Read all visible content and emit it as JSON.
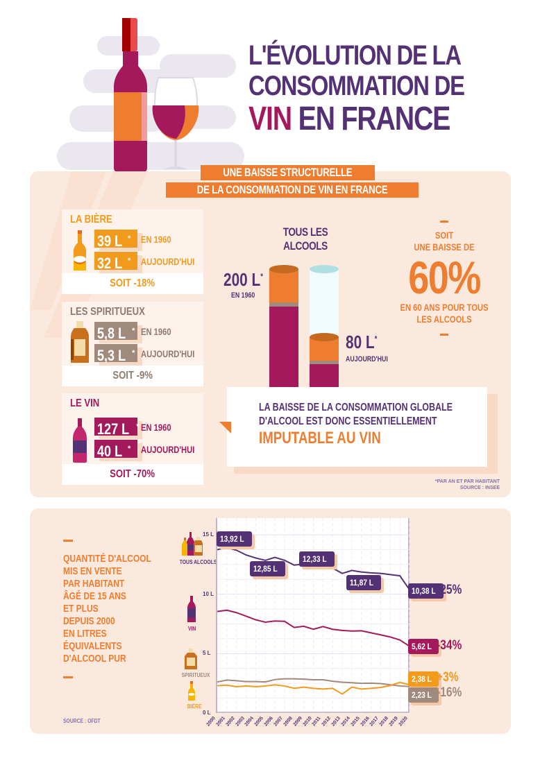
{
  "colors": {
    "purple": "#543174",
    "wine": "#a3195b",
    "orange": "#ee7d30",
    "beer": "#f29a1b",
    "spirits": "#a08a7c",
    "panel": "#fce9de"
  },
  "header": {
    "title_line1": "L'ÉVOLUTION DE LA",
    "title_line2": "CONSOMMATION DE",
    "title_line3_highlight": "VIN",
    "title_line3_rest": " EN FRANCE"
  },
  "section1": {
    "subtitle_line1": "UNE BAISSE STRUCTURELLE",
    "subtitle_line2": "DE LA CONSOMMATION DE VIN EN FRANCE",
    "cards": [
      {
        "title": "LA BIÈRE",
        "value_1960": "39 L",
        "label_1960": "EN 1960",
        "value_today": "32 L",
        "label_today": "AUJOURD'HUI",
        "asterisk": "*",
        "change": "SOIT -18%",
        "icon": "beer-bottle-icon"
      },
      {
        "title": "LES SPIRITUEUX",
        "value_1960": "5,8 L",
        "label_1960": "EN 1960",
        "value_today": "5,3 L",
        "label_today": "AUJOURD'HUI",
        "asterisk": "*",
        "change": "SOIT -9%",
        "icon": "spirits-bottle-icon"
      },
      {
        "title": "LE VIN",
        "value_1960": "127 L",
        "label_1960": "EN 1960",
        "value_today": "40 L",
        "label_today": "AUJOURD'HUI",
        "asterisk": "*",
        "change": "SOIT -70%",
        "icon": "wine-bottle-icon"
      }
    ],
    "all_alcohol": {
      "heading_line1": "TOUS LES",
      "heading_line2": "ALCOOLS",
      "value_1960": "200 L",
      "label_1960": "EN 1960",
      "value_today": "80 L",
      "label_today": "AUJOURD'HUI",
      "asterisk": "*"
    },
    "drop": {
      "line1": "SOIT",
      "line2": "UNE BAISSE DE",
      "percent": "60%",
      "line3": "EN 60 ANS POUR TOUS",
      "line4": "LES ALCOOLS"
    },
    "conclusion": {
      "line1": "LA BAISSE DE LA CONSOMMATION GLOBALE",
      "line2": "D'ALCOOL EST DONC ESSENTIELLEMENT",
      "highlight": "IMPUTABLE AU VIN"
    },
    "footnote_line1": "*PAR AN ET PAR HABITANT",
    "footnote_line2": "SOURCE : INSEE"
  },
  "section2": {
    "description": [
      "QUANTITÉ D'ALCOOL",
      "MIS EN VENTE",
      "PAR HABITANT",
      "ÂGÉ DE 15 ANS",
      "ET PLUS",
      "DEPUIS 2000",
      "EN LITRES",
      "ÉQUIVALENTS",
      "D'ALCOOL PUR"
    ],
    "source": "SOURCE : OFDT",
    "category_labels": {
      "all": "TOUS ALCOOLS",
      "wine": "VIN",
      "spirits": "SPIRITUEUX",
      "beer": "BIÈRE"
    },
    "callouts": {
      "all_2001": "13,92 L",
      "all_2005": "12,85 L",
      "all_2010": "12,33 L",
      "all_2015": "11,87 L",
      "all_2020": "10,38 L",
      "wine_2020": "5,62 L",
      "beer_2020": "2,38 L",
      "spirits_2020": "2,23 L"
    },
    "changes": {
      "all": "-25%",
      "wine": "-34%",
      "beer": "+3%",
      "spirits": "-16%"
    }
  },
  "chart_data": {
    "type": "line",
    "title": "Quantité d'alcool mis en vente par habitant âgé de 15 ans et plus depuis 2000 en litres équivalents d'alcool pur",
    "xlabel": "",
    "ylabel": "Litres d'alcool pur",
    "ylim": [
      0,
      15
    ],
    "yticks": [
      "0 L",
      "5 L",
      "10 L",
      "15 L"
    ],
    "grid": true,
    "x": [
      "2000",
      "2001",
      "2002",
      "2003",
      "2004",
      "2005",
      "2006",
      "2007",
      "2008",
      "2009",
      "2010",
      "2011",
      "2012",
      "2013",
      "2014",
      "2015",
      "2016",
      "2017",
      "2018",
      "2019",
      "2020"
    ],
    "series": [
      {
        "name": "Tous alcools",
        "color": "#543174",
        "values": [
          13.75,
          13.92,
          13.7,
          13.3,
          13.05,
          12.85,
          13.1,
          12.85,
          12.45,
          12.55,
          12.33,
          12.3,
          12.2,
          11.75,
          12.0,
          11.87,
          11.8,
          11.75,
          11.65,
          11.55,
          10.38
        ]
      },
      {
        "name": "Vin",
        "color": "#a3195b",
        "values": [
          8.55,
          8.65,
          8.45,
          8.15,
          7.85,
          7.65,
          7.75,
          7.72,
          7.2,
          7.3,
          7.05,
          7.28,
          7.05,
          6.95,
          6.9,
          6.92,
          6.75,
          6.58,
          6.4,
          6.15,
          5.62
        ]
      },
      {
        "name": "Spiritueux",
        "color": "#a08a7c",
        "values": [
          2.62,
          2.78,
          2.72,
          2.65,
          2.65,
          2.62,
          2.82,
          2.88,
          2.88,
          2.85,
          2.8,
          2.8,
          2.68,
          2.6,
          2.55,
          2.5,
          2.52,
          2.48,
          2.38,
          2.28,
          2.23
        ]
      },
      {
        "name": "Bière",
        "color": "#f29a1b",
        "values": [
          2.3,
          2.35,
          2.22,
          2.28,
          2.22,
          2.28,
          2.38,
          2.28,
          2.08,
          2.18,
          2.08,
          2.02,
          2.08,
          1.6,
          2.18,
          2.02,
          2.08,
          2.15,
          2.32,
          2.58,
          2.38
        ]
      }
    ],
    "end_labels": {
      "Tous alcools": "10,38 L -25%",
      "Vin": "5,62 L -34%",
      "Bière": "2,38 L +3%",
      "Spiritueux": "2,23 L -16%"
    }
  }
}
